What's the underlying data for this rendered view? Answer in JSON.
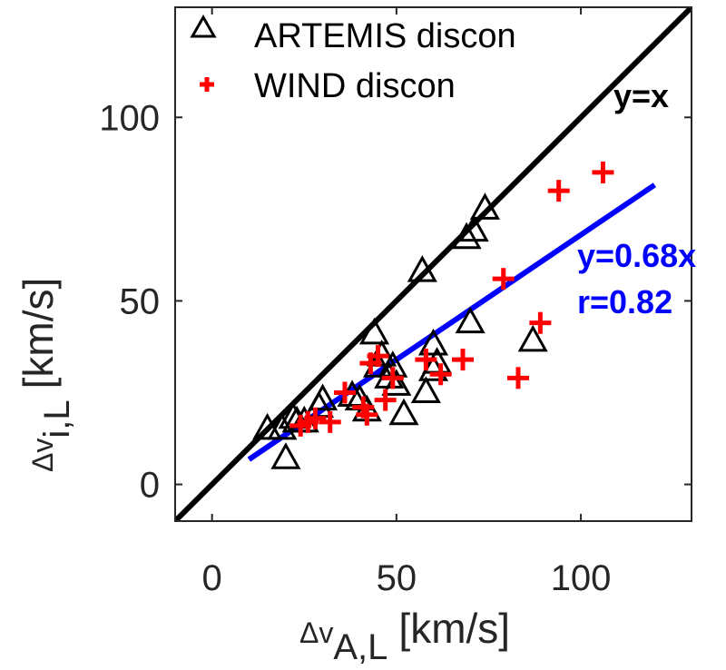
{
  "chart_data": {
    "type": "scatter",
    "xlabel": "Δv",
    "xlabel_sub": "A,L",
    "xlabel_unit": "[km/s]",
    "ylabel": "Δv",
    "ylabel_sub": "i,L",
    "ylabel_unit": "[km/s]",
    "xlim": [
      -10,
      130
    ],
    "ylim": [
      -10,
      130
    ],
    "xticks": [
      0,
      50,
      100
    ],
    "yticks": [
      0,
      50,
      100
    ],
    "grid": false,
    "legend": "top-left",
    "series": [
      {
        "name": "ARTEMIS discon",
        "marker": "triangle",
        "color": "#000000",
        "points": [
          [
            15,
            15
          ],
          [
            19,
            15
          ],
          [
            20,
            7
          ],
          [
            22,
            18
          ],
          [
            23,
            17
          ],
          [
            25,
            17
          ],
          [
            29,
            21
          ],
          [
            30,
            23
          ],
          [
            38,
            24
          ],
          [
            40,
            23
          ],
          [
            42,
            20
          ],
          [
            44,
            41
          ],
          [
            45,
            32
          ],
          [
            46,
            35
          ],
          [
            48,
            29
          ],
          [
            49,
            32
          ],
          [
            50,
            27
          ],
          [
            52,
            19
          ],
          [
            57,
            58
          ],
          [
            58,
            25
          ],
          [
            60,
            31
          ],
          [
            60,
            38
          ],
          [
            61,
            33
          ],
          [
            69,
            67
          ],
          [
            70,
            44
          ],
          [
            71,
            69
          ],
          [
            74,
            75
          ],
          [
            87,
            39
          ]
        ]
      },
      {
        "name": "WIND discon",
        "marker": "plus",
        "color": "#ff0000",
        "points": [
          [
            24,
            16
          ],
          [
            26,
            17
          ],
          [
            28,
            18
          ],
          [
            32,
            17
          ],
          [
            36,
            25
          ],
          [
            41,
            21
          ],
          [
            42,
            19
          ],
          [
            43,
            33
          ],
          [
            45,
            35
          ],
          [
            47,
            23
          ],
          [
            49,
            29
          ],
          [
            58,
            34
          ],
          [
            62,
            30
          ],
          [
            68,
            34
          ],
          [
            79,
            56
          ],
          [
            83,
            29
          ],
          [
            89,
            44
          ],
          [
            94,
            80
          ],
          [
            106,
            85
          ]
        ]
      }
    ],
    "lines": [
      {
        "label": "y=x",
        "slope": 1,
        "intercept": 0,
        "x_range": [
          -10,
          130
        ],
        "color": "#000000"
      },
      {
        "label": "y=0.68x",
        "slope": 0.68,
        "intercept": 0,
        "x_range": [
          10,
          120
        ],
        "color": "#0000ff"
      }
    ],
    "annotations": {
      "identity": "y=x",
      "fit": "y=0.68x",
      "correlation": "r=0.82"
    }
  }
}
